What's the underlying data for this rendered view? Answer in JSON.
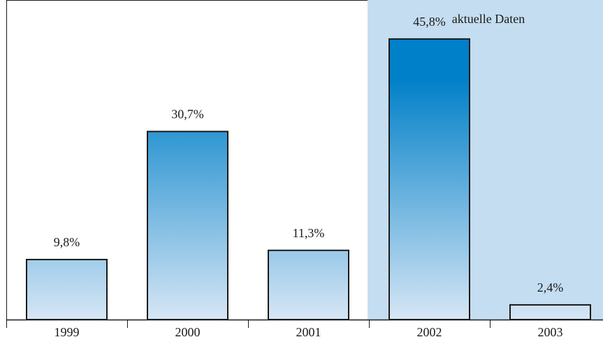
{
  "chart_data": {
    "type": "bar",
    "categories": [
      "1999",
      "2000",
      "2001",
      "2002",
      "2003"
    ],
    "values": [
      9.8,
      30.7,
      11.3,
      45.8,
      2.4
    ],
    "value_labels": [
      "9,8%",
      "30,7%",
      "11,3%",
      "45,8%",
      "2,4%"
    ],
    "title": "",
    "xlabel": "",
    "ylabel": "",
    "ylim": [
      0,
      50
    ],
    "grid": false,
    "highlight": {
      "label": "aktuelle Daten",
      "categories": [
        "2002",
        "2003"
      ],
      "color": "#c5ddf0"
    },
    "colors": {
      "bar_top": "#0080c8",
      "bar_bottom": "#d6e6f5",
      "bar_stroke": "#1a1a1a",
      "frame": "#1a1a1a"
    }
  }
}
